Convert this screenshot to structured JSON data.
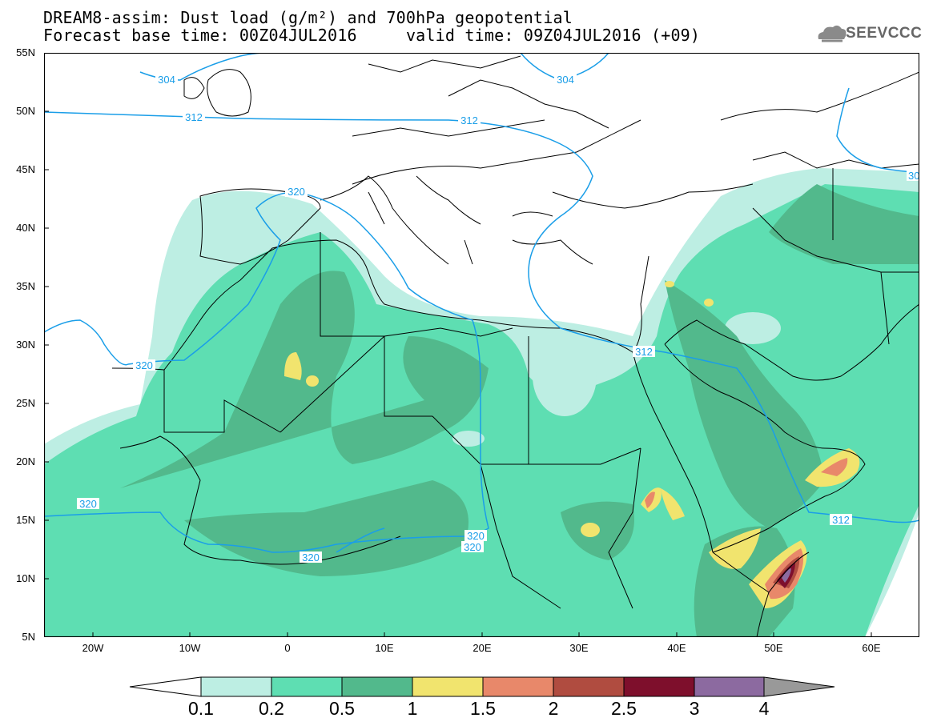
{
  "title": {
    "line1": "DREAM8-assim: Dust load (g/m²) and 700hPa geopotential",
    "line2_left": "Forecast base time: 00Z04JUL2016",
    "line2_right": "valid time: 09Z04JUL2016 (+09)"
  },
  "logo": {
    "text": "SEEVCCC",
    "icon": "cloud-icon"
  },
  "map": {
    "lat_labels": [
      "55N",
      "50N",
      "45N",
      "40N",
      "35N",
      "30N",
      "25N",
      "20N",
      "15N",
      "10N",
      "5N"
    ],
    "lon_labels": [
      "20W",
      "10W",
      "0",
      "10E",
      "20E",
      "30E",
      "40E",
      "50E",
      "60E"
    ],
    "contour_labels": [
      {
        "id": "c1",
        "text": "304"
      },
      {
        "id": "c2",
        "text": "304"
      },
      {
        "id": "c3",
        "text": "312"
      },
      {
        "id": "c4",
        "text": "312"
      },
      {
        "id": "c5",
        "text": "320"
      },
      {
        "id": "c6",
        "text": "320"
      },
      {
        "id": "c7",
        "text": "320"
      },
      {
        "id": "c8",
        "text": "320"
      },
      {
        "id": "c9",
        "text": "320"
      },
      {
        "id": "c10",
        "text": "320"
      },
      {
        "id": "c11",
        "text": "312"
      },
      {
        "id": "c12",
        "text": "312"
      },
      {
        "id": "c13",
        "text": "30"
      }
    ],
    "colors": {
      "l01": "#bdeee3",
      "l02": "#5edeb2",
      "l05": "#52b98c",
      "l1": "#f1e46e",
      "l15": "#e8886a",
      "l2": "#b04c40",
      "l25": "#7e0f2c",
      "l3": "#8c6aa0",
      "contour": "#1a9ee8"
    }
  },
  "colorbar": {
    "labels": [
      "0.1",
      "0.2",
      "0.5",
      "1",
      "1.5",
      "2",
      "2.5",
      "3",
      "4"
    ],
    "colors": [
      "#ffffff",
      "#bdeee3",
      "#5edeb2",
      "#52b98c",
      "#f1e46e",
      "#e8886a",
      "#b04c40",
      "#7e0f2c",
      "#8c6aa0",
      "#999999"
    ]
  }
}
